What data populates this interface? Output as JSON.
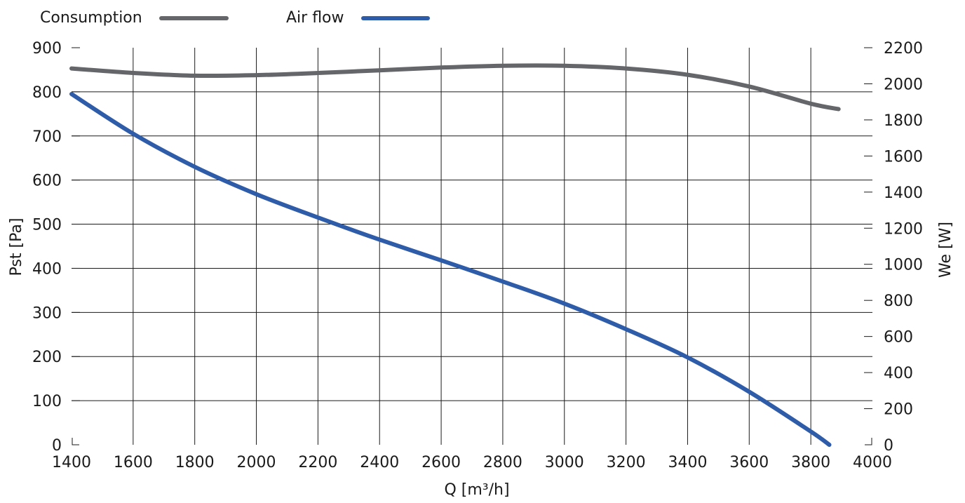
{
  "chart_data": {
    "type": "line",
    "xlabel": "Q [m³/h]",
    "ylabel_left": "Pst [Pa]",
    "ylabel_right": "We [W]",
    "xlim": [
      1400,
      4000
    ],
    "ylim_left": [
      0,
      900
    ],
    "ylim_right": [
      0,
      2200
    ],
    "x_ticks": [
      1400,
      1600,
      1800,
      2000,
      2200,
      2400,
      2600,
      2800,
      3000,
      3200,
      3400,
      3600,
      3800,
      4000
    ],
    "y_ticks_left": [
      0,
      100,
      200,
      300,
      400,
      500,
      600,
      700,
      800,
      900
    ],
    "y_ticks_right": [
      0,
      200,
      400,
      600,
      800,
      1000,
      1200,
      1400,
      1600,
      1800,
      2000,
      2200
    ],
    "grid": true,
    "legend_position": "top-left",
    "series": [
      {
        "name": "Consumption",
        "axis": "right",
        "color": "#65666a",
        "x": [
          1400,
          1600,
          1800,
          2000,
          2200,
          2400,
          2600,
          2800,
          3000,
          3200,
          3400,
          3600,
          3800,
          3890
        ],
        "y": [
          2085,
          2060,
          2045,
          2048,
          2060,
          2075,
          2090,
          2100,
          2100,
          2085,
          2050,
          1985,
          1890,
          1860
        ]
      },
      {
        "name": "Air flow",
        "axis": "left",
        "color": "#2f5ca8",
        "x": [
          1400,
          1600,
          1800,
          2000,
          2200,
          2400,
          2600,
          2800,
          3000,
          3200,
          3400,
          3600,
          3800,
          3860
        ],
        "y": [
          795,
          705,
          630,
          568,
          515,
          465,
          418,
          370,
          320,
          262,
          198,
          120,
          30,
          0
        ]
      }
    ]
  }
}
